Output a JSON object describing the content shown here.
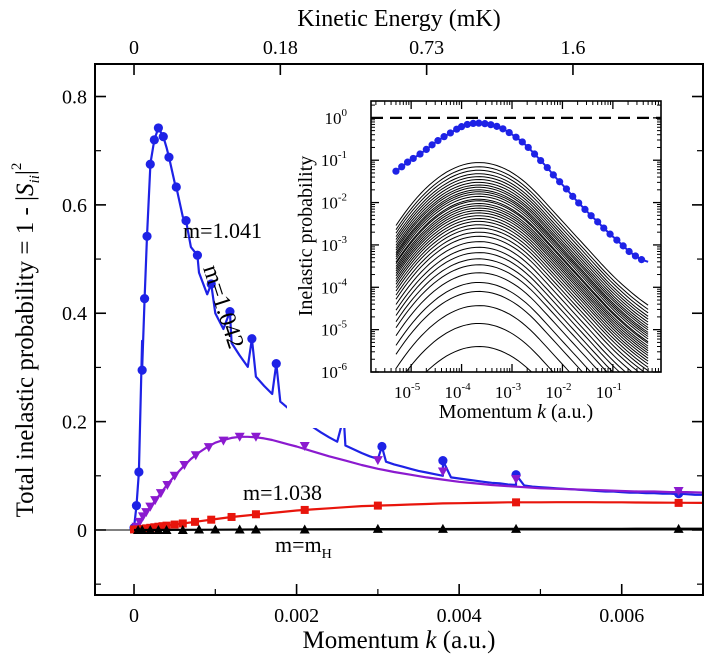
{
  "chart_data": [
    {
      "type": "line",
      "xlabel": "Momentum k (a.u.)",
      "ylabel": "Total inelastic probability = 1 - |S_ii|^2",
      "top_axis_title": "Kinetic Energy (mK)",
      "xlim": [
        -0.00048,
        0.007
      ],
      "ylim": [
        -0.12,
        0.86
      ],
      "x_ticks": [
        0,
        0.002,
        0.004,
        0.006
      ],
      "x_tick_labels": [
        "0",
        "0.002",
        "0.004",
        "0.006"
      ],
      "y_ticks": [
        0,
        0.2,
        0.4,
        0.6,
        0.8
      ],
      "y_tick_labels": [
        "0",
        "0.2",
        "0.4",
        "0.6",
        "0.8"
      ],
      "top_ticks": [
        0,
        0.0018,
        0.0036,
        0.0054
      ],
      "top_tick_labels": [
        "0",
        "0.18",
        "0.73",
        "1.6"
      ],
      "series": [
        {
          "label": "m=1.042",
          "color": "#1e22e6",
          "marker": "circle",
          "x": [
            0,
            0.0001,
            0.0002,
            0.0003,
            0.0004,
            0.0005,
            0.0006,
            0.0007,
            0.0008,
            0.0009,
            0.001,
            0.0011,
            0.0012,
            0.0013,
            0.0014,
            0.0015,
            0.0016,
            0.0017,
            0.0018,
            0.0019,
            0.002,
            0.0021,
            0.0022,
            0.0023,
            0.0024,
            0.0025,
            0.0026,
            0.0027,
            0.0028,
            0.0029,
            0.003,
            0.0031,
            0.0032,
            0.0033,
            0.0034,
            0.0035,
            0.0036,
            0.0037,
            0.0038,
            0.0039,
            0.004,
            0.0041,
            0.0042,
            0.0043,
            0.0044,
            0.0045,
            0.0046,
            0.0047,
            0.0048,
            0.0049,
            0.005,
            0.0051,
            0.0052,
            0.0053,
            0.0054,
            0.0055,
            0.0056,
            0.0057,
            0.0058,
            0.0059,
            0.006,
            0.0061,
            0.0062,
            0.0063,
            0.0064,
            0.0065,
            0.0066,
            0.0067,
            0.0068,
            0.0069,
            0.007
          ],
          "y": [
            0,
            0.349,
            0.671,
            0.742,
            0.706,
            0.641,
            0.578,
            0.522,
            0.475,
            0.435,
            0.4,
            0.371,
            0.345,
            0.322,
            0.301,
            0.283,
            0.266,
            0.251,
            0.237,
            0.224,
            0.211,
            0.2,
            0.19,
            0.18,
            0.171,
            0.163,
            0.156,
            0.149,
            0.142,
            0.136,
            0.131,
            0.126,
            0.121,
            0.117,
            0.113,
            0.109,
            0.106,
            0.103,
            0.1,
            0.097,
            0.095,
            0.093,
            0.091,
            0.089,
            0.087,
            0.086,
            0.084,
            0.083,
            0.082,
            0.08,
            0.079,
            0.078,
            0.077,
            0.076,
            0.075,
            0.074,
            0.073,
            0.072,
            0.071,
            0.071,
            0.07,
            0.069,
            0.069,
            0.068,
            0.068,
            0.067,
            0.067,
            0.066,
            0.066,
            0.065,
            0.065
          ],
          "marker_x": [
            0,
            3e-05,
            6e-05,
            0.0001,
            0.00013,
            0.00016,
            0.0002,
            0.00025,
            0.0003,
            0.00036,
            0.00043,
            0.00052,
            0.00064,
            0.00078,
            0.00095,
            0.00118,
            0.00145,
            0.00175,
            0.00213,
            0.00258,
            0.00305,
            0.0038,
            0.0047,
            0.0067
          ],
          "marker_y": [
            0.004,
            0.045,
            0.107,
            0.295,
            0.427,
            0.542,
            0.675,
            0.72,
            0.742,
            0.726,
            0.688,
            0.633,
            0.571,
            0.507,
            0.454,
            0.403,
            0.353,
            0.307,
            0.257,
            0.208,
            0.154,
            0.128,
            0.102,
            0.067
          ]
        },
        {
          "label": "m=1.041",
          "color": "#8b1acf",
          "marker": "triangle-down",
          "x": [
            0,
            0.0001,
            0.0002,
            0.0003,
            0.0004,
            0.0005,
            0.0006,
            0.0007,
            0.0008,
            0.0009,
            0.001,
            0.0011,
            0.0012,
            0.0013,
            0.0014,
            0.0015,
            0.0016,
            0.0017,
            0.0018,
            0.0019,
            0.002,
            0.0022,
            0.0024,
            0.0026,
            0.0028,
            0.003,
            0.0032,
            0.0034,
            0.0036,
            0.0038,
            0.004,
            0.0042,
            0.0044,
            0.0046,
            0.0048,
            0.005,
            0.0052,
            0.0054,
            0.0056,
            0.0058,
            0.006,
            0.0062,
            0.0064,
            0.0066,
            0.0068,
            0.007
          ],
          "y": [
            0,
            0.022,
            0.042,
            0.062,
            0.082,
            0.1,
            0.116,
            0.131,
            0.143,
            0.153,
            0.161,
            0.166,
            0.17,
            0.172,
            0.172,
            0.171,
            0.169,
            0.166,
            0.162,
            0.158,
            0.154,
            0.145,
            0.136,
            0.128,
            0.12,
            0.113,
            0.107,
            0.102,
            0.097,
            0.093,
            0.089,
            0.086,
            0.083,
            0.081,
            0.079,
            0.077,
            0.076,
            0.075,
            0.074,
            0.073,
            0.072,
            0.071,
            0.071,
            0.07,
            0.07,
            0.069
          ],
          "marker_x": [
            3e-05,
            7e-05,
            0.00011,
            0.00015,
            0.0002,
            0.00026,
            0.00033,
            0.00041,
            0.0005,
            0.00062,
            0.00076,
            0.00092,
            0.0011,
            0.0013,
            0.0015,
            0.0021,
            0.003,
            0.0038,
            0.0047,
            0.0067
          ],
          "marker_y": [
            0.006,
            0.015,
            0.025,
            0.033,
            0.043,
            0.055,
            0.068,
            0.083,
            0.1,
            0.12,
            0.138,
            0.153,
            0.165,
            0.172,
            0.172,
            0.155,
            0.129,
            0.108,
            0.094,
            0.072
          ]
        },
        {
          "label": "m=1.038",
          "color": "#e8150c",
          "marker": "square",
          "x": [
            0,
            0.0002,
            0.0004,
            0.0006,
            0.0008,
            0.001,
            0.0012,
            0.0014,
            0.0016,
            0.0018,
            0.002,
            0.0022,
            0.0024,
            0.0026,
            0.0028,
            0.003,
            0.0032,
            0.0034,
            0.0036,
            0.0038,
            0.004,
            0.0042,
            0.0044,
            0.0046,
            0.0048,
            0.005,
            0.0052,
            0.0054,
            0.0056,
            0.0058,
            0.006,
            0.0062,
            0.0064,
            0.0066,
            0.0068,
            0.007
          ],
          "y": [
            0,
            0.004,
            0.008,
            0.012,
            0.016,
            0.02,
            0.024,
            0.027,
            0.03,
            0.033,
            0.036,
            0.038,
            0.04,
            0.042,
            0.044,
            0.045,
            0.046,
            0.047,
            0.048,
            0.049,
            0.0495,
            0.05,
            0.0505,
            0.051,
            0.051,
            0.051,
            0.0512,
            0.0512,
            0.0512,
            0.0511,
            0.051,
            0.0508,
            0.0506,
            0.0504,
            0.0502,
            0.05
          ],
          "marker_x": [
            0,
            5e-05,
            0.0001,
            0.00015,
            0.0002,
            0.00025,
            0.0003,
            0.00035,
            0.0004,
            0.0005,
            0.0006,
            0.00075,
            0.00095,
            0.0012,
            0.0015,
            0.0021,
            0.003,
            0.0047,
            0.0067
          ],
          "marker_y": [
            0.001,
            0.001,
            0.002,
            0.003,
            0.004,
            0.005,
            0.006,
            0.007,
            0.008,
            0.01,
            0.012,
            0.015,
            0.019,
            0.024,
            0.029,
            0.037,
            0.045,
            0.051,
            0.05
          ]
        },
        {
          "label": "m=m_H",
          "color": "#000000",
          "marker": "triangle-up",
          "x": [
            0,
            0.001,
            0.002,
            0.003,
            0.004,
            0.005,
            0.006,
            0.007
          ],
          "y": [
            0,
            0.0006,
            0.0012,
            0.0016,
            0.0019,
            0.0021,
            0.0022,
            0.0023
          ],
          "marker_x": [
            5e-05,
            0.0001,
            0.0002,
            0.0003,
            0.0004,
            0.0006,
            0.0008,
            0.001,
            0.0013,
            0.0015,
            0.0021,
            0.003,
            0.0038,
            0.0047,
            0.0067
          ],
          "marker_y": [
            0,
            0,
            0,
            0,
            0,
            0,
            0.001,
            0.001,
            0.001,
            0.001,
            0.001,
            0.002,
            0.002,
            0.002,
            0.002
          ]
        }
      ],
      "annotations": [
        {
          "text": "m=1.042",
          "color": "#1e22e6"
        },
        {
          "text": "m=1.041",
          "color": "#8b1acf"
        },
        {
          "text": "m=1.038",
          "color": "#e8150c"
        },
        {
          "text": "m=m",
          "sub": "H",
          "color": "#000000"
        }
      ]
    },
    {
      "type": "line",
      "inset": true,
      "xscale": "log",
      "yscale": "log",
      "xlabel": "Momentum k (a.u.)",
      "ylabel": "Inelastic probability",
      "xlim": [
        1.6e-06,
        0.9
      ],
      "ylim": [
        1e-06,
        2.5
      ],
      "x_ticks": [
        1e-05,
        0.0001,
        0.001,
        0.01,
        0.1
      ],
      "x_tick_exponents": [
        "-5",
        "-4",
        "-3",
        "-2",
        "-1"
      ],
      "y_ticks": [
        1e-06,
        1e-05,
        0.0001,
        0.001,
        0.01,
        0.1,
        1
      ],
      "y_tick_exponents": [
        "-6",
        "-5",
        "-4",
        "-3",
        "-2",
        "-1",
        "0"
      ],
      "unitarity_line": {
        "y": 1,
        "style": "dashed",
        "color": "#000000"
      },
      "total": {
        "color": "#1e22e6",
        "marker": "circle",
        "x": [
          5e-06,
          6.5e-06,
          8.5e-06,
          1.1e-05,
          1.5e-05,
          2e-05,
          2.6e-05,
          3.4e-05,
          4.5e-05,
          6e-05,
          8e-05,
          0.0001,
          0.00013,
          0.00017,
          0.00022,
          0.00029,
          0.00038,
          0.0005,
          0.00066,
          0.00088,
          0.0012,
          0.0016,
          0.0021,
          0.0028,
          0.0037,
          0.005,
          0.0066,
          0.0088,
          0.012,
          0.016,
          0.021,
          0.028,
          0.037,
          0.05,
          0.066,
          0.088,
          0.12,
          0.16,
          0.21,
          0.28,
          0.37,
          0.5
        ],
        "y": [
          0.055,
          0.07,
          0.09,
          0.11,
          0.14,
          0.18,
          0.23,
          0.29,
          0.36,
          0.44,
          0.54,
          0.62,
          0.7,
          0.74,
          0.75,
          0.73,
          0.69,
          0.63,
          0.55,
          0.45,
          0.35,
          0.27,
          0.2,
          0.14,
          0.098,
          0.067,
          0.045,
          0.031,
          0.021,
          0.014,
          0.0098,
          0.0069,
          0.0049,
          0.0035,
          0.0025,
          0.0018,
          0.0013,
          0.00095,
          0.0007,
          0.00055,
          0.00045,
          0.0004
        ]
      },
      "partial_channels": {
        "color": "#000000",
        "x_range": [
          5e-06,
          0.5
        ],
        "peak_values": [
          4e-06,
          1.4e-05,
          3.7e-05,
          8e-05,
          0.00013,
          0.00022,
          0.00034,
          0.00047,
          0.00066,
          0.00088,
          0.0012,
          0.0016,
          0.002,
          0.0025,
          0.003,
          0.0036,
          0.0042,
          0.0049,
          0.0057,
          0.0065,
          0.0074,
          0.0084,
          0.0095,
          0.011,
          0.012,
          0.014,
          0.016,
          0.018,
          0.02,
          0.023,
          0.026,
          0.03,
          0.035,
          0.041,
          0.048,
          0.058,
          0.07,
          0.088
        ]
      }
    }
  ]
}
